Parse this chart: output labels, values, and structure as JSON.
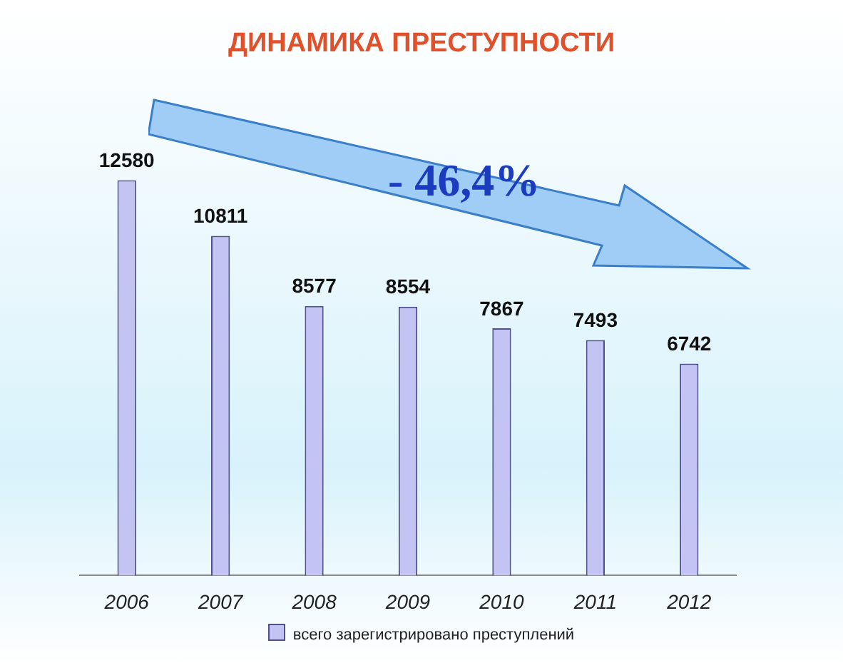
{
  "chart_data": {
    "type": "bar",
    "title": "ДИНАМИКА ПРЕСТУПНОСТИ",
    "categories": [
      "2006",
      "2007",
      "2008",
      "2009",
      "2010",
      "2011",
      "2012"
    ],
    "series": [
      {
        "name": "всего зарегистрировано преступлений",
        "color": "#c4c4f4",
        "values": [
          12580,
          10811,
          8577,
          8554,
          7867,
          7493,
          6742
        ]
      }
    ],
    "relative": false,
    "data_labels": true,
    "legend": "bottom",
    "grid": false,
    "annotations": [
      "- 46,4%"
    ]
  }
}
